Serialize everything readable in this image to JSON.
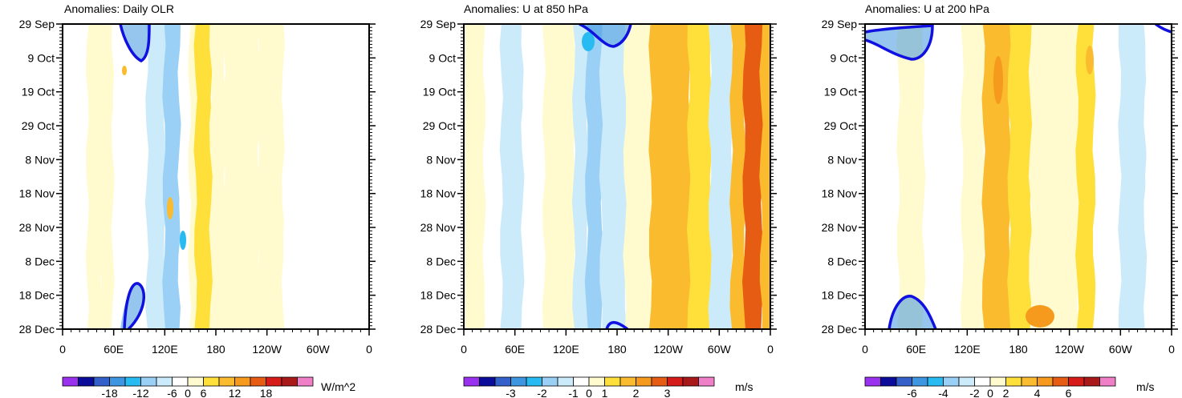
{
  "chart_data": [
    {
      "type": "heatmap",
      "title": "Anomalies: Daily OLR",
      "x_ticks": [
        "0",
        "60E",
        "120E",
        "180",
        "120W",
        "60W",
        "0"
      ],
      "y_ticks": [
        "29 Sep",
        "9 Oct",
        "19 Oct",
        "29 Oct",
        "8 Nov",
        "18 Nov",
        "28 Nov",
        "8 Dec",
        "18 Dec",
        "28 Dec"
      ],
      "colorbar": {
        "units": "W/m^2",
        "labels": [
          "-18",
          "-12",
          "-6",
          "0",
          "6",
          "12",
          "18"
        ]
      },
      "longitude_bands": [
        {
          "lon": [
            0,
            15
          ],
          "value": -1.5
        },
        {
          "lon": [
            15,
            30
          ],
          "value": -3
        },
        {
          "lon": [
            30,
            45
          ],
          "value": 0
        },
        {
          "lon": [
            45,
            60
          ],
          "value": 2
        },
        {
          "lon": [
            60,
            80
          ],
          "value": -3
        },
        {
          "lon": [
            80,
            100
          ],
          "value": -6
        },
        {
          "lon": [
            100,
            120
          ],
          "value": -9
        },
        {
          "lon": [
            120,
            138
          ],
          "value": -13
        },
        {
          "lon": [
            138,
            150
          ],
          "value": -5
        },
        {
          "lon": [
            150,
            157
          ],
          "value": 3
        },
        {
          "lon": [
            157,
            175
          ],
          "value": 7
        },
        {
          "lon": [
            175,
            190
          ],
          "value": 3
        },
        {
          "lon": [
            190,
            230
          ],
          "value": 1
        },
        {
          "lon": [
            230,
            260
          ],
          "value": 2
        },
        {
          "lon": [
            260,
            290
          ],
          "value": -2
        },
        {
          "lon": [
            290,
            315
          ],
          "value": -5
        },
        {
          "lon": [
            315,
            340
          ],
          "value": -2
        },
        {
          "lon": [
            340,
            360
          ],
          "value": -1
        }
      ],
      "contour_color": "#1010e0"
    },
    {
      "type": "heatmap",
      "title": "Anomalies: U at 850 hPa",
      "x_ticks": [
        "0",
        "60E",
        "120E",
        "180",
        "120W",
        "60W",
        "0"
      ],
      "y_ticks": [
        "29 Sep",
        "9 Oct",
        "19 Oct",
        "29 Oct",
        "8 Nov",
        "18 Nov",
        "28 Nov",
        "8 Dec",
        "18 Dec",
        "28 Dec"
      ],
      "colorbar": {
        "units": "m/s",
        "labels": [
          "-3",
          "-2",
          "-1",
          "0",
          "1",
          "2",
          "3"
        ]
      },
      "longitude_bands": [
        {
          "lon": [
            0,
            25
          ],
          "value": 0.3
        },
        {
          "lon": [
            25,
            45
          ],
          "value": -0.3
        },
        {
          "lon": [
            45,
            70
          ],
          "value": -0.6
        },
        {
          "lon": [
            70,
            95
          ],
          "value": -0.3
        },
        {
          "lon": [
            95,
            130
          ],
          "value": 0.3
        },
        {
          "lon": [
            130,
            145
          ],
          "value": -0.6
        },
        {
          "lon": [
            145,
            162
          ],
          "value": -1.3
        },
        {
          "lon": [
            162,
            190
          ],
          "value": -0.6
        },
        {
          "lon": [
            190,
            220
          ],
          "value": 0.2
        },
        {
          "lon": [
            220,
            265
          ],
          "value": 1.3
        },
        {
          "lon": [
            265,
            290
          ],
          "value": 0.5
        },
        {
          "lon": [
            290,
            315
          ],
          "value": -0.6
        },
        {
          "lon": [
            315,
            330
          ],
          "value": 1.0
        },
        {
          "lon": [
            330,
            350
          ],
          "value": 2.3
        },
        {
          "lon": [
            350,
            360
          ],
          "value": 1.3
        }
      ],
      "contour_color": "#1010e0"
    },
    {
      "type": "heatmap",
      "title": "Anomalies: U at 200 hPa",
      "x_ticks": [
        "0",
        "60E",
        "120E",
        "180",
        "120W",
        "60W",
        "0"
      ],
      "y_ticks": [
        "29 Sep",
        "9 Oct",
        "19 Oct",
        "29 Oct",
        "8 Nov",
        "18 Nov",
        "28 Nov",
        "8 Dec",
        "18 Dec",
        "28 Dec"
      ],
      "colorbar": {
        "units": "m/s",
        "labels": [
          "-6",
          "-4",
          "-2",
          "0",
          "2",
          "4",
          "6"
        ]
      },
      "longitude_bands": [
        {
          "lon": [
            0,
            40
          ],
          "value": -1.0
        },
        {
          "lon": [
            40,
            70
          ],
          "value": 0.6
        },
        {
          "lon": [
            70,
            115
          ],
          "value": -0.5
        },
        {
          "lon": [
            115,
            140
          ],
          "value": 0.8
        },
        {
          "lon": [
            140,
            170
          ],
          "value": 2.6
        },
        {
          "lon": [
            170,
            195
          ],
          "value": 1.4
        },
        {
          "lon": [
            195,
            250
          ],
          "value": 0.6
        },
        {
          "lon": [
            250,
            270
          ],
          "value": 1.3
        },
        {
          "lon": [
            270,
            300
          ],
          "value": -0.4
        },
        {
          "lon": [
            300,
            330
          ],
          "value": -1.1
        },
        {
          "lon": [
            330,
            360
          ],
          "value": -0.5
        }
      ],
      "contour_color": "#1010e0"
    }
  ],
  "palette": [
    "#9a31ef",
    "#0c0c9a",
    "#3361c9",
    "#3f96e0",
    "#27bbf1",
    "#9ad0f6",
    "#ccebfa",
    "#ffffff",
    "#fffbce",
    "#ffe03a",
    "#fbbb2e",
    "#f59a1c",
    "#e75c13",
    "#d61c18",
    "#a81a1a",
    "#ef80c7"
  ]
}
